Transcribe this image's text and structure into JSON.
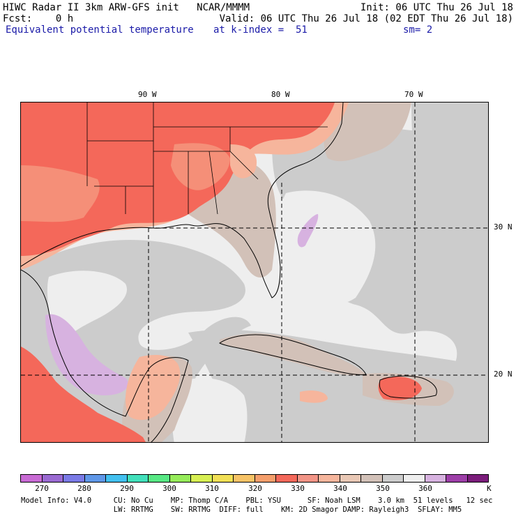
{
  "header": {
    "line1_left": "HIWC Radar II 3km ARW-GFS init   NCAR/MMMM",
    "line1_right": "Init: 06 UTC Thu 26 Jul 18",
    "line2_left": "Fcst:    0 h",
    "line2_right": "Valid: 06 UTC Thu 26 Jul 18 (02 EDT Thu 26 Jul 18)",
    "field_name": "Equivalent potential temperature",
    "level": "at k-index =  51",
    "smoothing": "sm= 2"
  },
  "map": {
    "longitude_labels": [
      "90 W",
      "80 W",
      "70 W"
    ],
    "latitude_labels": [
      "30 N",
      "20 N"
    ],
    "colors": {
      "c325": "#f9a07f",
      "c330": "#f4685a",
      "c335": "#f58f78",
      "c340": "#f6b59c",
      "c345": "#e9c8b5",
      "c350": "#d2c1b8",
      "c355": "#cccccc",
      "c360": "#eeeeee",
      "c365": "#d7b2e0",
      "c370": "#b77cd0",
      "c375": "#9933aa"
    }
  },
  "colorbar": {
    "colors": [
      "#c86ad4",
      "#9a6ad2",
      "#7a7ae6",
      "#5f97e8",
      "#42c0ef",
      "#41e0bb",
      "#57e884",
      "#96ec5a",
      "#d7ef52",
      "#f2e055",
      "#f7c366",
      "#f59e6b",
      "#f4685a",
      "#f29486",
      "#f6b59c",
      "#e9c8b5",
      "#d2c1b8",
      "#cccccc",
      "#eeeeee",
      "#d7b2e0",
      "#9d3ea8",
      "#7b1c7b"
    ],
    "labels": [
      "270",
      "280",
      "290",
      "300",
      "310",
      "320",
      "330",
      "340",
      "350",
      "360"
    ],
    "unit": "K"
  },
  "footer": {
    "line1": "Model Info: V4.0     CU: No Cu    MP: Thomp C/A    PBL: YSU      SF: Noah LSM    3.0 km  51 levels   12 sec",
    "line2": "                     LW: RRTMG    SW: RRTMG  DIFF: full    KM: 2D Smagor DAMP: Rayleigh3  SFLAY: MM5"
  }
}
